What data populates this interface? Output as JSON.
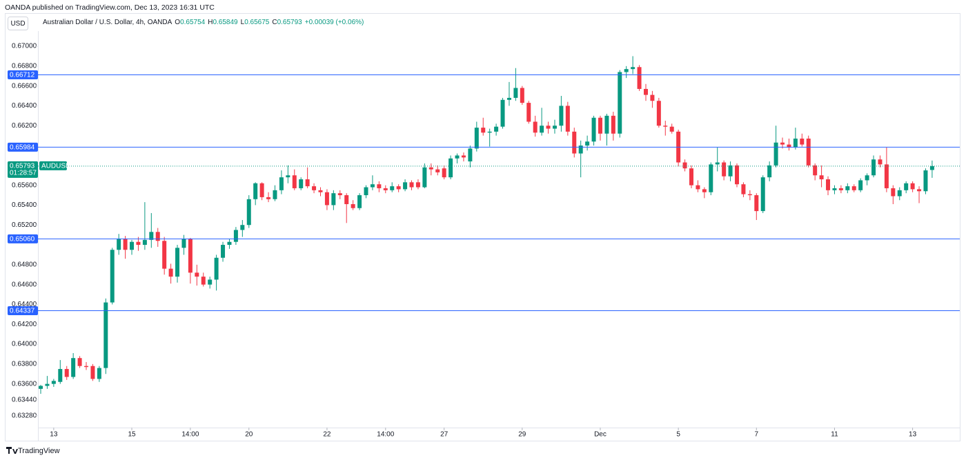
{
  "chart_data": {
    "type": "candlestick",
    "published": "OANDA published on TradingView.com, Dec 13, 2023 16:31 UTC",
    "currency": "USD",
    "brand": "TradingView",
    "legend": {
      "name": "Australian Dollar / U.S. Dollar, 4h, OANDA",
      "fields": [
        {
          "label": "O",
          "value": 0.65754
        },
        {
          "label": "H",
          "value": 0.65849
        },
        {
          "label": "L",
          "value": 0.65675
        },
        {
          "label": "C",
          "value": 0.65793
        }
      ],
      "change": "+0.00039 (+0.06%)"
    },
    "up_color": "#089981",
    "down_color": "#f23645",
    "level_color": "#2962ff",
    "grid": false,
    "ylim": [
      0.6316,
      0.67153
    ],
    "yticks": [
      {
        "value": 0.67,
        "label": "0.67000"
      },
      {
        "value": 0.668,
        "label": "0.66800"
      },
      {
        "value": 0.666,
        "label": "0.66600"
      },
      {
        "value": 0.664,
        "label": "0.66400"
      },
      {
        "value": 0.662,
        "label": "0.66200"
      },
      {
        "value": 0.656,
        "label": "0.65600"
      },
      {
        "value": 0.654,
        "label": "0.65400"
      },
      {
        "value": 0.652,
        "label": "0.65200"
      },
      {
        "value": 0.648,
        "label": "0.64800"
      },
      {
        "value": 0.646,
        "label": "0.64600"
      },
      {
        "value": 0.644,
        "label": "0.64400"
      },
      {
        "value": 0.642,
        "label": "0.64200"
      },
      {
        "value": 0.64,
        "label": "0.64000"
      },
      {
        "value": 0.638,
        "label": "0.63800"
      },
      {
        "value": 0.636,
        "label": "0.63600"
      },
      {
        "value": 0.6344,
        "label": "0.63440"
      },
      {
        "value": 0.6328,
        "label": "0.63280"
      }
    ],
    "levels": [
      0.66712,
      0.65984,
      {
        "value": 0.6506,
        "label": "0.65060"
      },
      0.64337
    ],
    "last_price": {
      "value": 0.65793,
      "symbol": "AUDUSD",
      "countdown": "01:28:57"
    },
    "categories": [
      null,
      null,
      "13",
      null,
      null,
      null,
      null,
      null,
      null,
      null,
      null,
      null,
      null,
      null,
      "15",
      null,
      null,
      null,
      null,
      null,
      null,
      null,
      null,
      "14:00",
      null,
      null,
      null,
      null,
      null,
      null,
      null,
      null,
      "20",
      null,
      null,
      null,
      null,
      null,
      null,
      null,
      null,
      null,
      null,
      null,
      "22",
      null,
      null,
      null,
      null,
      null,
      null,
      null,
      null,
      "14:00",
      null,
      null,
      null,
      null,
      null,
      null,
      null,
      null,
      "27",
      null,
      null,
      null,
      null,
      null,
      null,
      null,
      null,
      null,
      null,
      null,
      "29",
      null,
      null,
      null,
      null,
      null,
      null,
      null,
      null,
      null,
      null,
      null,
      "Dec",
      null,
      null,
      null,
      null,
      null,
      null,
      null,
      null,
      null,
      null,
      null,
      "5",
      null,
      null,
      null,
      null,
      null,
      null,
      null,
      null,
      null,
      null,
      null,
      "7",
      null,
      null,
      null,
      null,
      null,
      null,
      null,
      null,
      null,
      null,
      null,
      "11",
      null,
      null,
      null,
      null,
      null,
      null,
      null,
      null,
      null,
      null,
      null,
      "13",
      null,
      null,
      null
    ],
    "candles": [
      [
        0.6355,
        0.6359,
        0.635,
        0.6358
      ],
      [
        0.6358,
        0.6368,
        0.6355,
        0.636
      ],
      [
        0.636,
        0.6365,
        0.6357,
        0.6363
      ],
      [
        0.6362,
        0.6384,
        0.636,
        0.6375
      ],
      [
        0.6375,
        0.6378,
        0.6364,
        0.6367
      ],
      [
        0.6367,
        0.6391,
        0.6365,
        0.6386
      ],
      [
        0.6386,
        0.6388,
        0.6376,
        0.6378
      ],
      [
        0.6378,
        0.6382,
        0.6374,
        0.6377
      ],
      [
        0.6378,
        0.638,
        0.6363,
        0.6365
      ],
      [
        0.6365,
        0.6378,
        0.6362,
        0.6376
      ],
      [
        0.6376,
        0.6446,
        0.637,
        0.6442
      ],
      [
        0.6442,
        0.6497,
        0.644,
        0.6495
      ],
      [
        0.6495,
        0.6511,
        0.649,
        0.6506
      ],
      [
        0.6506,
        0.6509,
        0.6486,
        0.6495
      ],
      [
        0.6495,
        0.6505,
        0.649,
        0.6503
      ],
      [
        0.6503,
        0.6508,
        0.6494,
        0.65
      ],
      [
        0.65,
        0.6543,
        0.6495,
        0.6505
      ],
      [
        0.6505,
        0.6532,
        0.6497,
        0.6513
      ],
      [
        0.6513,
        0.6517,
        0.6498,
        0.6504
      ],
      [
        0.6504,
        0.6508,
        0.647,
        0.6476
      ],
      [
        0.6476,
        0.6481,
        0.6461,
        0.6468
      ],
      [
        0.6468,
        0.65,
        0.6462,
        0.6497
      ],
      [
        0.6497,
        0.651,
        0.649,
        0.6506
      ],
      [
        0.6506,
        0.6507,
        0.6461,
        0.6472
      ],
      [
        0.6472,
        0.648,
        0.6459,
        0.6468
      ],
      [
        0.6468,
        0.6472,
        0.6458,
        0.646
      ],
      [
        0.646,
        0.6468,
        0.6456,
        0.6465
      ],
      [
        0.6465,
        0.649,
        0.6454,
        0.6487
      ],
      [
        0.6487,
        0.6503,
        0.6483,
        0.65
      ],
      [
        0.65,
        0.6506,
        0.6496,
        0.6503
      ],
      [
        0.6503,
        0.6518,
        0.65,
        0.6515
      ],
      [
        0.6515,
        0.6525,
        0.6508,
        0.652
      ],
      [
        0.652,
        0.655,
        0.6517,
        0.6546
      ],
      [
        0.6546,
        0.6563,
        0.654,
        0.6562
      ],
      [
        0.6562,
        0.6563,
        0.6545,
        0.6548
      ],
      [
        0.6548,
        0.6553,
        0.6543,
        0.6546
      ],
      [
        0.6546,
        0.656,
        0.6544,
        0.6555
      ],
      [
        0.6555,
        0.6575,
        0.6551,
        0.6568
      ],
      [
        0.6568,
        0.658,
        0.6562,
        0.657
      ],
      [
        0.657,
        0.6576,
        0.6555,
        0.6557
      ],
      [
        0.6557,
        0.6568,
        0.6555,
        0.6566
      ],
      [
        0.6566,
        0.6578,
        0.6557,
        0.6559
      ],
      [
        0.6559,
        0.6562,
        0.6552,
        0.6555
      ],
      [
        0.6555,
        0.6558,
        0.6549,
        0.6553
      ],
      [
        0.6553,
        0.6556,
        0.6535,
        0.654
      ],
      [
        0.654,
        0.6555,
        0.6535,
        0.6552
      ],
      [
        0.6552,
        0.6555,
        0.6546,
        0.655
      ],
      [
        0.655,
        0.6552,
        0.6522,
        0.6541
      ],
      [
        0.6541,
        0.6545,
        0.6535,
        0.6537
      ],
      [
        0.6537,
        0.6552,
        0.6535,
        0.655
      ],
      [
        0.655,
        0.656,
        0.6547,
        0.6558
      ],
      [
        0.6558,
        0.657,
        0.6555,
        0.6561
      ],
      [
        0.6561,
        0.6564,
        0.6553,
        0.6557
      ],
      [
        0.6557,
        0.656,
        0.6552,
        0.6555
      ],
      [
        0.6555,
        0.6563,
        0.6553,
        0.6559
      ],
      [
        0.6559,
        0.6561,
        0.6553,
        0.6556
      ],
      [
        0.6556,
        0.6566,
        0.6554,
        0.6563
      ],
      [
        0.6563,
        0.6565,
        0.6555,
        0.6558
      ],
      [
        0.6563,
        0.6566,
        0.6556,
        0.6558
      ],
      [
        0.6558,
        0.6582,
        0.6557,
        0.6578
      ],
      [
        0.6578,
        0.6582,
        0.657,
        0.6576
      ],
      [
        0.6576,
        0.658,
        0.657,
        0.6573
      ],
      [
        0.6577,
        0.658,
        0.6566,
        0.6568
      ],
      [
        0.6568,
        0.659,
        0.6566,
        0.6587
      ],
      [
        0.6587,
        0.6592,
        0.6582,
        0.659
      ],
      [
        0.659,
        0.6593,
        0.6584,
        0.6588
      ],
      [
        0.6584,
        0.66,
        0.6578,
        0.6597
      ],
      [
        0.6597,
        0.6624,
        0.6594,
        0.6618
      ],
      [
        0.6618,
        0.6628,
        0.661,
        0.6613
      ],
      [
        0.6613,
        0.6617,
        0.6599,
        0.6614
      ],
      [
        0.6614,
        0.6622,
        0.661,
        0.6619
      ],
      [
        0.6619,
        0.6648,
        0.6617,
        0.6646
      ],
      [
        0.6646,
        0.6664,
        0.664,
        0.6648
      ],
      [
        0.6648,
        0.6678,
        0.6645,
        0.6658
      ],
      [
        0.6658,
        0.666,
        0.6641,
        0.6643
      ],
      [
        0.6643,
        0.6645,
        0.6622,
        0.6624
      ],
      [
        0.6624,
        0.663,
        0.6609,
        0.6613
      ],
      [
        0.6613,
        0.6638,
        0.661,
        0.662
      ],
      [
        0.662,
        0.6624,
        0.6612,
        0.6617
      ],
      [
        0.6617,
        0.6626,
        0.6612,
        0.662
      ],
      [
        0.662,
        0.665,
        0.6614,
        0.664
      ],
      [
        0.664,
        0.6644,
        0.661,
        0.6614
      ],
      [
        0.6614,
        0.6618,
        0.6588,
        0.6592
      ],
      [
        0.6592,
        0.6605,
        0.6568,
        0.66
      ],
      [
        0.66,
        0.661,
        0.6595,
        0.6604
      ],
      [
        0.6604,
        0.663,
        0.66,
        0.6628
      ],
      [
        0.6628,
        0.663,
        0.6605,
        0.6612
      ],
      [
        0.6612,
        0.6632,
        0.66,
        0.663
      ],
      [
        0.663,
        0.6634,
        0.6605,
        0.6612
      ],
      [
        0.6612,
        0.6676,
        0.6608,
        0.6674
      ],
      [
        0.6674,
        0.668,
        0.6668,
        0.6677
      ],
      [
        0.6677,
        0.669,
        0.6672,
        0.6679
      ],
      [
        0.6679,
        0.6681,
        0.6655,
        0.6657
      ],
      [
        0.6657,
        0.6662,
        0.6645,
        0.6651
      ],
      [
        0.6651,
        0.6655,
        0.6638,
        0.6645
      ],
      [
        0.6645,
        0.6648,
        0.6618,
        0.662
      ],
      [
        0.662,
        0.6625,
        0.661,
        0.6619
      ],
      [
        0.6619,
        0.6622,
        0.6612,
        0.6614
      ],
      [
        0.6614,
        0.6616,
        0.6579,
        0.6583
      ],
      [
        0.6583,
        0.6586,
        0.6574,
        0.6577
      ],
      [
        0.6577,
        0.658,
        0.6557,
        0.656
      ],
      [
        0.656,
        0.6565,
        0.6553,
        0.6556
      ],
      [
        0.6556,
        0.6558,
        0.6547,
        0.6553
      ],
      [
        0.6553,
        0.6583,
        0.655,
        0.6581
      ],
      [
        0.6581,
        0.6598,
        0.6574,
        0.6583
      ],
      [
        0.6583,
        0.6585,
        0.6565,
        0.6569
      ],
      [
        0.6569,
        0.6584,
        0.6564,
        0.658
      ],
      [
        0.658,
        0.6582,
        0.6558,
        0.6561
      ],
      [
        0.6561,
        0.6563,
        0.6548,
        0.6551
      ],
      [
        0.6551,
        0.6555,
        0.6545,
        0.655
      ],
      [
        0.655,
        0.6552,
        0.6525,
        0.6534
      ],
      [
        0.6534,
        0.657,
        0.6532,
        0.6568
      ],
      [
        0.6568,
        0.6584,
        0.6564,
        0.658
      ],
      [
        0.658,
        0.662,
        0.6578,
        0.6603
      ],
      [
        0.6603,
        0.6608,
        0.6597,
        0.6601
      ],
      [
        0.6601,
        0.6607,
        0.6595,
        0.6598
      ],
      [
        0.6598,
        0.6618,
        0.6596,
        0.6607
      ],
      [
        0.6607,
        0.6612,
        0.6599,
        0.6601
      ],
      [
        0.6607,
        0.661,
        0.6578,
        0.658
      ],
      [
        0.658,
        0.6582,
        0.6565,
        0.657
      ],
      [
        0.657,
        0.658,
        0.6558,
        0.6566
      ],
      [
        0.6566,
        0.6569,
        0.655,
        0.6555
      ],
      [
        0.6555,
        0.656,
        0.6551,
        0.6557
      ],
      [
        0.6557,
        0.656,
        0.6552,
        0.6555
      ],
      [
        0.6555,
        0.6562,
        0.6552,
        0.6559
      ],
      [
        0.6559,
        0.6561,
        0.6553,
        0.6555
      ],
      [
        0.6555,
        0.6567,
        0.6553,
        0.6565
      ],
      [
        0.6565,
        0.6572,
        0.656,
        0.657
      ],
      [
        0.657,
        0.659,
        0.6568,
        0.6586
      ],
      [
        0.6586,
        0.659,
        0.6578,
        0.6581
      ],
      [
        0.6581,
        0.6598,
        0.6553,
        0.6557
      ],
      [
        0.6557,
        0.656,
        0.6541,
        0.6549
      ],
      [
        0.6549,
        0.6558,
        0.6545,
        0.6555
      ],
      [
        0.6555,
        0.6564,
        0.6552,
        0.6562
      ],
      [
        0.6562,
        0.6564,
        0.6553,
        0.6556
      ],
      [
        0.6556,
        0.6559,
        0.6542,
        0.6554
      ],
      [
        0.6554,
        0.6577,
        0.6551,
        0.6575
      ],
      [
        0.65754,
        0.65849,
        0.65675,
        0.65793
      ]
    ]
  }
}
